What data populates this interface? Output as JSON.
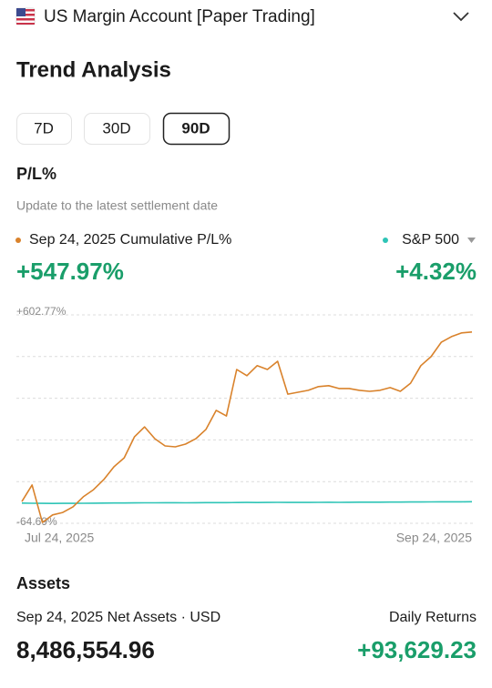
{
  "header": {
    "account": "US Margin Account [Paper Trading]"
  },
  "section_title": "Trend Analysis",
  "periods": {
    "options": [
      "7D",
      "30D",
      "90D"
    ],
    "selected": 2
  },
  "pl": {
    "title": "P/L%",
    "note": "Update to the latest settlement date"
  },
  "chart_data": {
    "type": "line",
    "categories": [
      "Jul 24, 2025",
      null,
      null,
      null,
      null,
      null,
      null,
      null,
      null,
      null,
      null,
      null,
      null,
      null,
      null,
      null,
      null,
      null,
      null,
      null,
      null,
      null,
      null,
      null,
      null,
      null,
      null,
      null,
      null,
      null,
      null,
      null,
      null,
      null,
      null,
      null,
      null,
      null,
      null,
      null,
      null,
      null,
      null,
      null,
      "Sep 24, 2025"
    ],
    "series": [
      {
        "name": "Sep 24, 2025 Cumulative P/L%",
        "color": "#d9822b",
        "value_label": "+547.97%",
        "values": [
          5,
          58,
          -62,
          -38,
          -30,
          -12,
          20,
          43,
          75,
          116,
          145,
          212,
          244,
          206,
          183,
          180,
          189,
          206,
          236,
          297,
          279,
          428,
          408,
          440,
          428,
          454,
          349,
          355,
          361,
          373,
          376,
          367,
          367,
          361,
          358,
          361,
          370,
          358,
          384,
          440,
          469,
          515,
          533,
          545,
          547.97
        ]
      },
      {
        "name": "S&P 500",
        "color": "#2ec4b6",
        "value_label": "+4.32%",
        "values": [
          0,
          -0.5,
          -1,
          -1.2,
          -1,
          -0.8,
          -0.5,
          -0.3,
          0,
          0.2,
          0.3,
          0.5,
          0.8,
          1,
          1.2,
          1.1,
          1,
          1.2,
          1.4,
          1.6,
          1.5,
          1.7,
          2,
          1.9,
          2.1,
          2.3,
          2.2,
          2,
          2.1,
          2.3,
          2.5,
          2.4,
          2.6,
          2.8,
          3,
          2.9,
          3.1,
          3.3,
          3.5,
          3.6,
          3.8,
          4,
          4.1,
          4.2,
          4.32
        ]
      }
    ],
    "ylim": [
      -64.69,
      602.77
    ],
    "yticks": [
      {
        "value": 602.77,
        "label": "+602.77%"
      },
      {
        "value": -64.69,
        "label": "-64.69%"
      }
    ],
    "grid_values": [
      469.28,
      335.79,
      202.31,
      68.82
    ],
    "grid": true
  },
  "assets": {
    "title": "Assets",
    "net_label": "Sep 24, 2025 Net Assets · USD",
    "net_value": "8,486,554.96",
    "daily_label": "Daily Returns",
    "daily_value": "+93,629.23"
  }
}
